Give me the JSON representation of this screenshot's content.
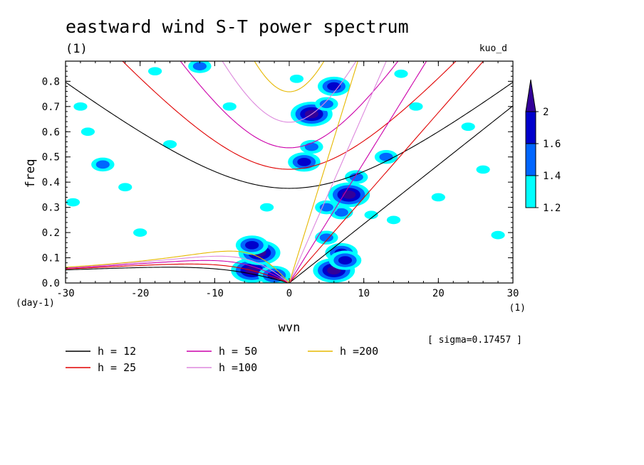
{
  "chart_data": {
    "type": "contour",
    "title": "eastward wind S-T power spectrum",
    "subtitle": "(1)",
    "model_label": "kuo_d",
    "xlabel": "wvn",
    "ylabel": "freq",
    "x_unit": "(1)",
    "y_unit": "(day-1)",
    "xlim": [
      -30,
      30
    ],
    "ylim": [
      0,
      0.88
    ],
    "x_ticks": [
      -30,
      -20,
      -10,
      0,
      10,
      20,
      30
    ],
    "x_tick_labels": [
      "-30",
      "-20",
      "-10",
      "0",
      "10",
      "20",
      "30"
    ],
    "y_ticks": [
      0,
      0.1,
      0.2,
      0.3,
      0.4,
      0.5,
      0.6,
      0.7,
      0.8
    ],
    "y_tick_labels": [
      "0.0",
      "0.1",
      "0.2",
      "0.3",
      "0.4",
      "0.5",
      "0.6",
      "0.7",
      "0.8"
    ],
    "sigma_text": "[ sigma=0.17457 ]",
    "colorbar": {
      "levels": [
        1.2,
        1.4,
        1.6,
        2
      ],
      "labels": [
        "1.2",
        "1.4",
        "1.6",
        "2"
      ],
      "colors": [
        "#00ffff",
        "#0066ff",
        "#0000cc",
        "#330099"
      ]
    },
    "dispersion_curves": [
      {
        "h": 12,
        "label": "h = 12",
        "color": "#000000"
      },
      {
        "h": 25,
        "label": "h = 25",
        "color": "#e00000"
      },
      {
        "h": 50,
        "label": "h = 50",
        "color": "#cc00aa"
      },
      {
        "h": 100,
        "label": "h =100",
        "color": "#dd88dd"
      },
      {
        "h": 200,
        "label": "h =200",
        "color": "#e6b800"
      }
    ],
    "power_blobs": [
      {
        "x": -5,
        "y": 0.05,
        "level": 4
      },
      {
        "x": -4,
        "y": 0.12,
        "level": 4
      },
      {
        "x": -2,
        "y": 0.03,
        "level": 3
      },
      {
        "x": -5,
        "y": 0.15,
        "level": 3
      },
      {
        "x": 6,
        "y": 0.05,
        "level": 4
      },
      {
        "x": 7,
        "y": 0.12,
        "level": 3
      },
      {
        "x": 5,
        "y": 0.18,
        "level": 2
      },
      {
        "x": 7.5,
        "y": 0.09,
        "level": 3
      },
      {
        "x": 8,
        "y": 0.35,
        "level": 4
      },
      {
        "x": 7,
        "y": 0.28,
        "level": 2
      },
      {
        "x": 2,
        "y": 0.48,
        "level": 3
      },
      {
        "x": 3,
        "y": 0.54,
        "level": 2
      },
      {
        "x": 3,
        "y": 0.67,
        "level": 4
      },
      {
        "x": 5,
        "y": 0.71,
        "level": 2
      },
      {
        "x": 6,
        "y": 0.78,
        "level": 3
      },
      {
        "x": 13,
        "y": 0.5,
        "level": 2
      },
      {
        "x": 9,
        "y": 0.42,
        "level": 2
      },
      {
        "x": 5,
        "y": 0.3,
        "level": 2
      },
      {
        "x": 11,
        "y": 0.27,
        "level": 1
      },
      {
        "x": 14,
        "y": 0.25,
        "level": 1
      },
      {
        "x": -12,
        "y": 0.86,
        "level": 2
      },
      {
        "x": 1,
        "y": 0.81,
        "level": 1
      },
      {
        "x": -25,
        "y": 0.47,
        "level": 2
      },
      {
        "x": -27,
        "y": 0.6,
        "level": 1
      },
      {
        "x": -22,
        "y": 0.38,
        "level": 1
      },
      {
        "x": -29,
        "y": 0.32,
        "level": 1
      },
      {
        "x": -8,
        "y": 0.7,
        "level": 1
      },
      {
        "x": -20,
        "y": 0.2,
        "level": 1
      },
      {
        "x": 24,
        "y": 0.62,
        "level": 1
      },
      {
        "x": 17,
        "y": 0.7,
        "level": 1
      },
      {
        "x": 26,
        "y": 0.45,
        "level": 1
      },
      {
        "x": -16,
        "y": 0.55,
        "level": 1
      },
      {
        "x": 28,
        "y": 0.19,
        "level": 1
      },
      {
        "x": -3,
        "y": 0.3,
        "level": 1
      },
      {
        "x": -18,
        "y": 0.84,
        "level": 1
      },
      {
        "x": 20,
        "y": 0.34,
        "level": 1
      },
      {
        "x": -28,
        "y": 0.7,
        "level": 1
      },
      {
        "x": 15,
        "y": 0.83,
        "level": 1
      }
    ]
  }
}
